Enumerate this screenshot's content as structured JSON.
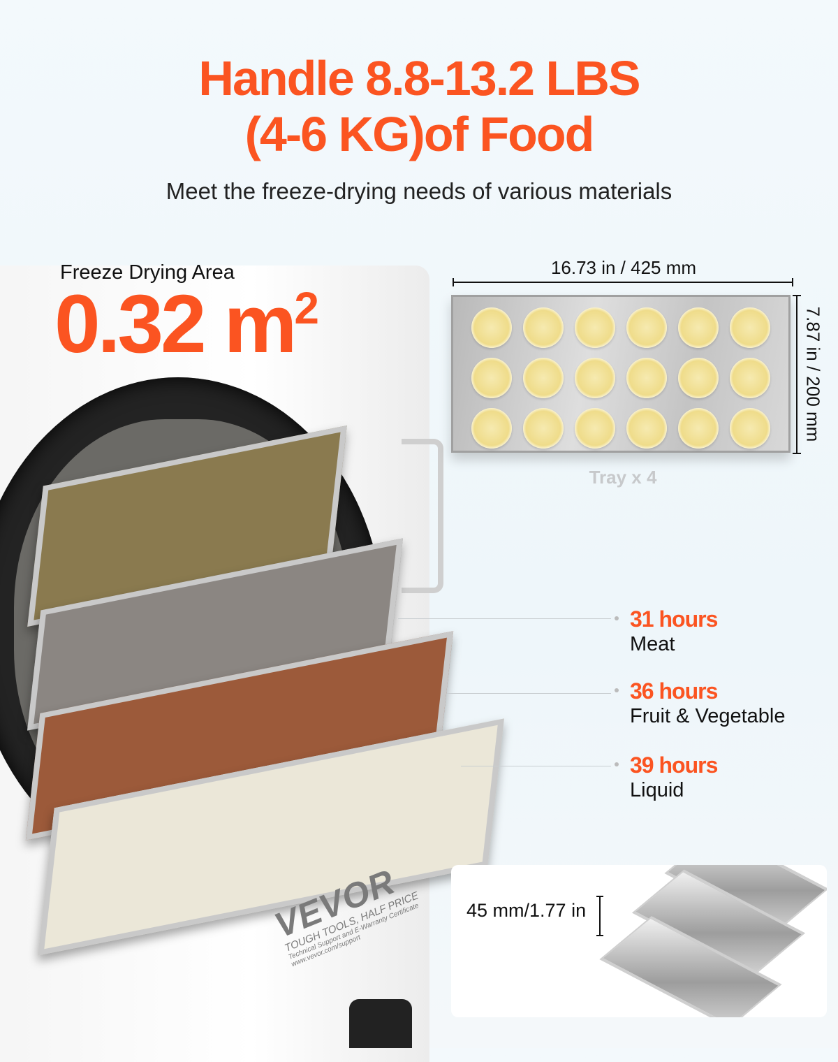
{
  "headline": {
    "line1": "Handle 8.8-13.2 LBS",
    "line2": "(4-6 KG)of Food",
    "subtitle": "Meet the freeze-drying needs of various materials"
  },
  "freeze_area": {
    "label": "Freeze Drying Area",
    "value": "0.32 m",
    "superscript": "2"
  },
  "tray_diagram": {
    "width_label": "16.73 in / 425 mm",
    "depth_label": "7.87 in / 200 mm",
    "caption": "Tray x 4",
    "lemon_rows": 3,
    "lemon_cols": 6
  },
  "drying_times": [
    {
      "hours": "31 hours",
      "material": "Meat"
    },
    {
      "hours": "36 hours",
      "material": "Fruit  & Vegetable"
    },
    {
      "hours": "39 hours",
      "material": "Liquid"
    }
  ],
  "tray_height": {
    "label": "45 mm/1.77 in"
  },
  "brand": {
    "logo": "VEVOR",
    "slogan": "TOUGH TOOLS, HALF PRICE",
    "support1": "Technical Support and E-Warranty Certificate",
    "support2": "www.vevor.com/support"
  },
  "colors": {
    "accent": "#fb5421",
    "background": "#eef6fa",
    "caption_gray": "#c7c9cb"
  }
}
